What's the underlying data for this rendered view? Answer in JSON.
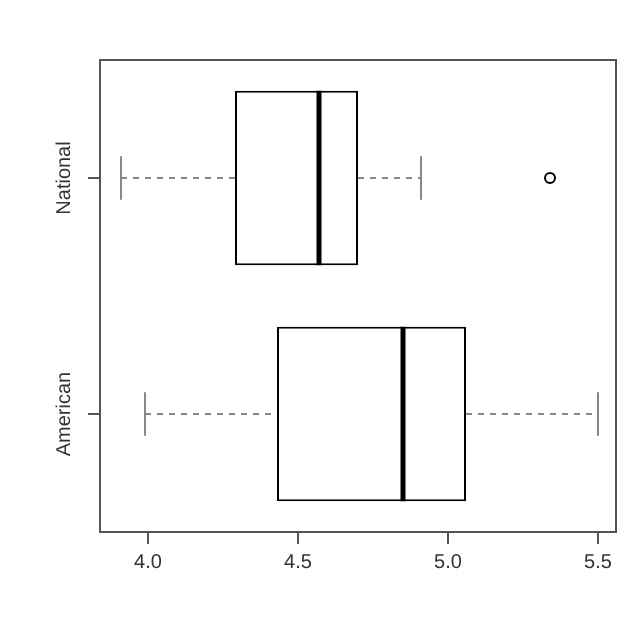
{
  "chart_data": {
    "type": "box",
    "orientation": "horizontal",
    "categories": [
      "National",
      "American"
    ],
    "boxes": [
      {
        "low": 3.91,
        "q1": 4.29,
        "median": 4.57,
        "q3": 4.7,
        "high": 4.91,
        "outliers": [
          5.34
        ]
      },
      {
        "low": 3.99,
        "q1": 4.43,
        "median": 4.85,
        "q3": 5.06,
        "high": 5.5
      }
    ],
    "xlim": [
      3.84,
      5.56
    ],
    "xticks": [
      {
        "value": 4,
        "label": "4.0"
      },
      {
        "value": 4.5,
        "label": "4.5"
      },
      {
        "value": 5,
        "label": "5.0"
      },
      {
        "value": 5.5,
        "label": "5.5"
      }
    ],
    "grid": false,
    "marker": "circle"
  }
}
